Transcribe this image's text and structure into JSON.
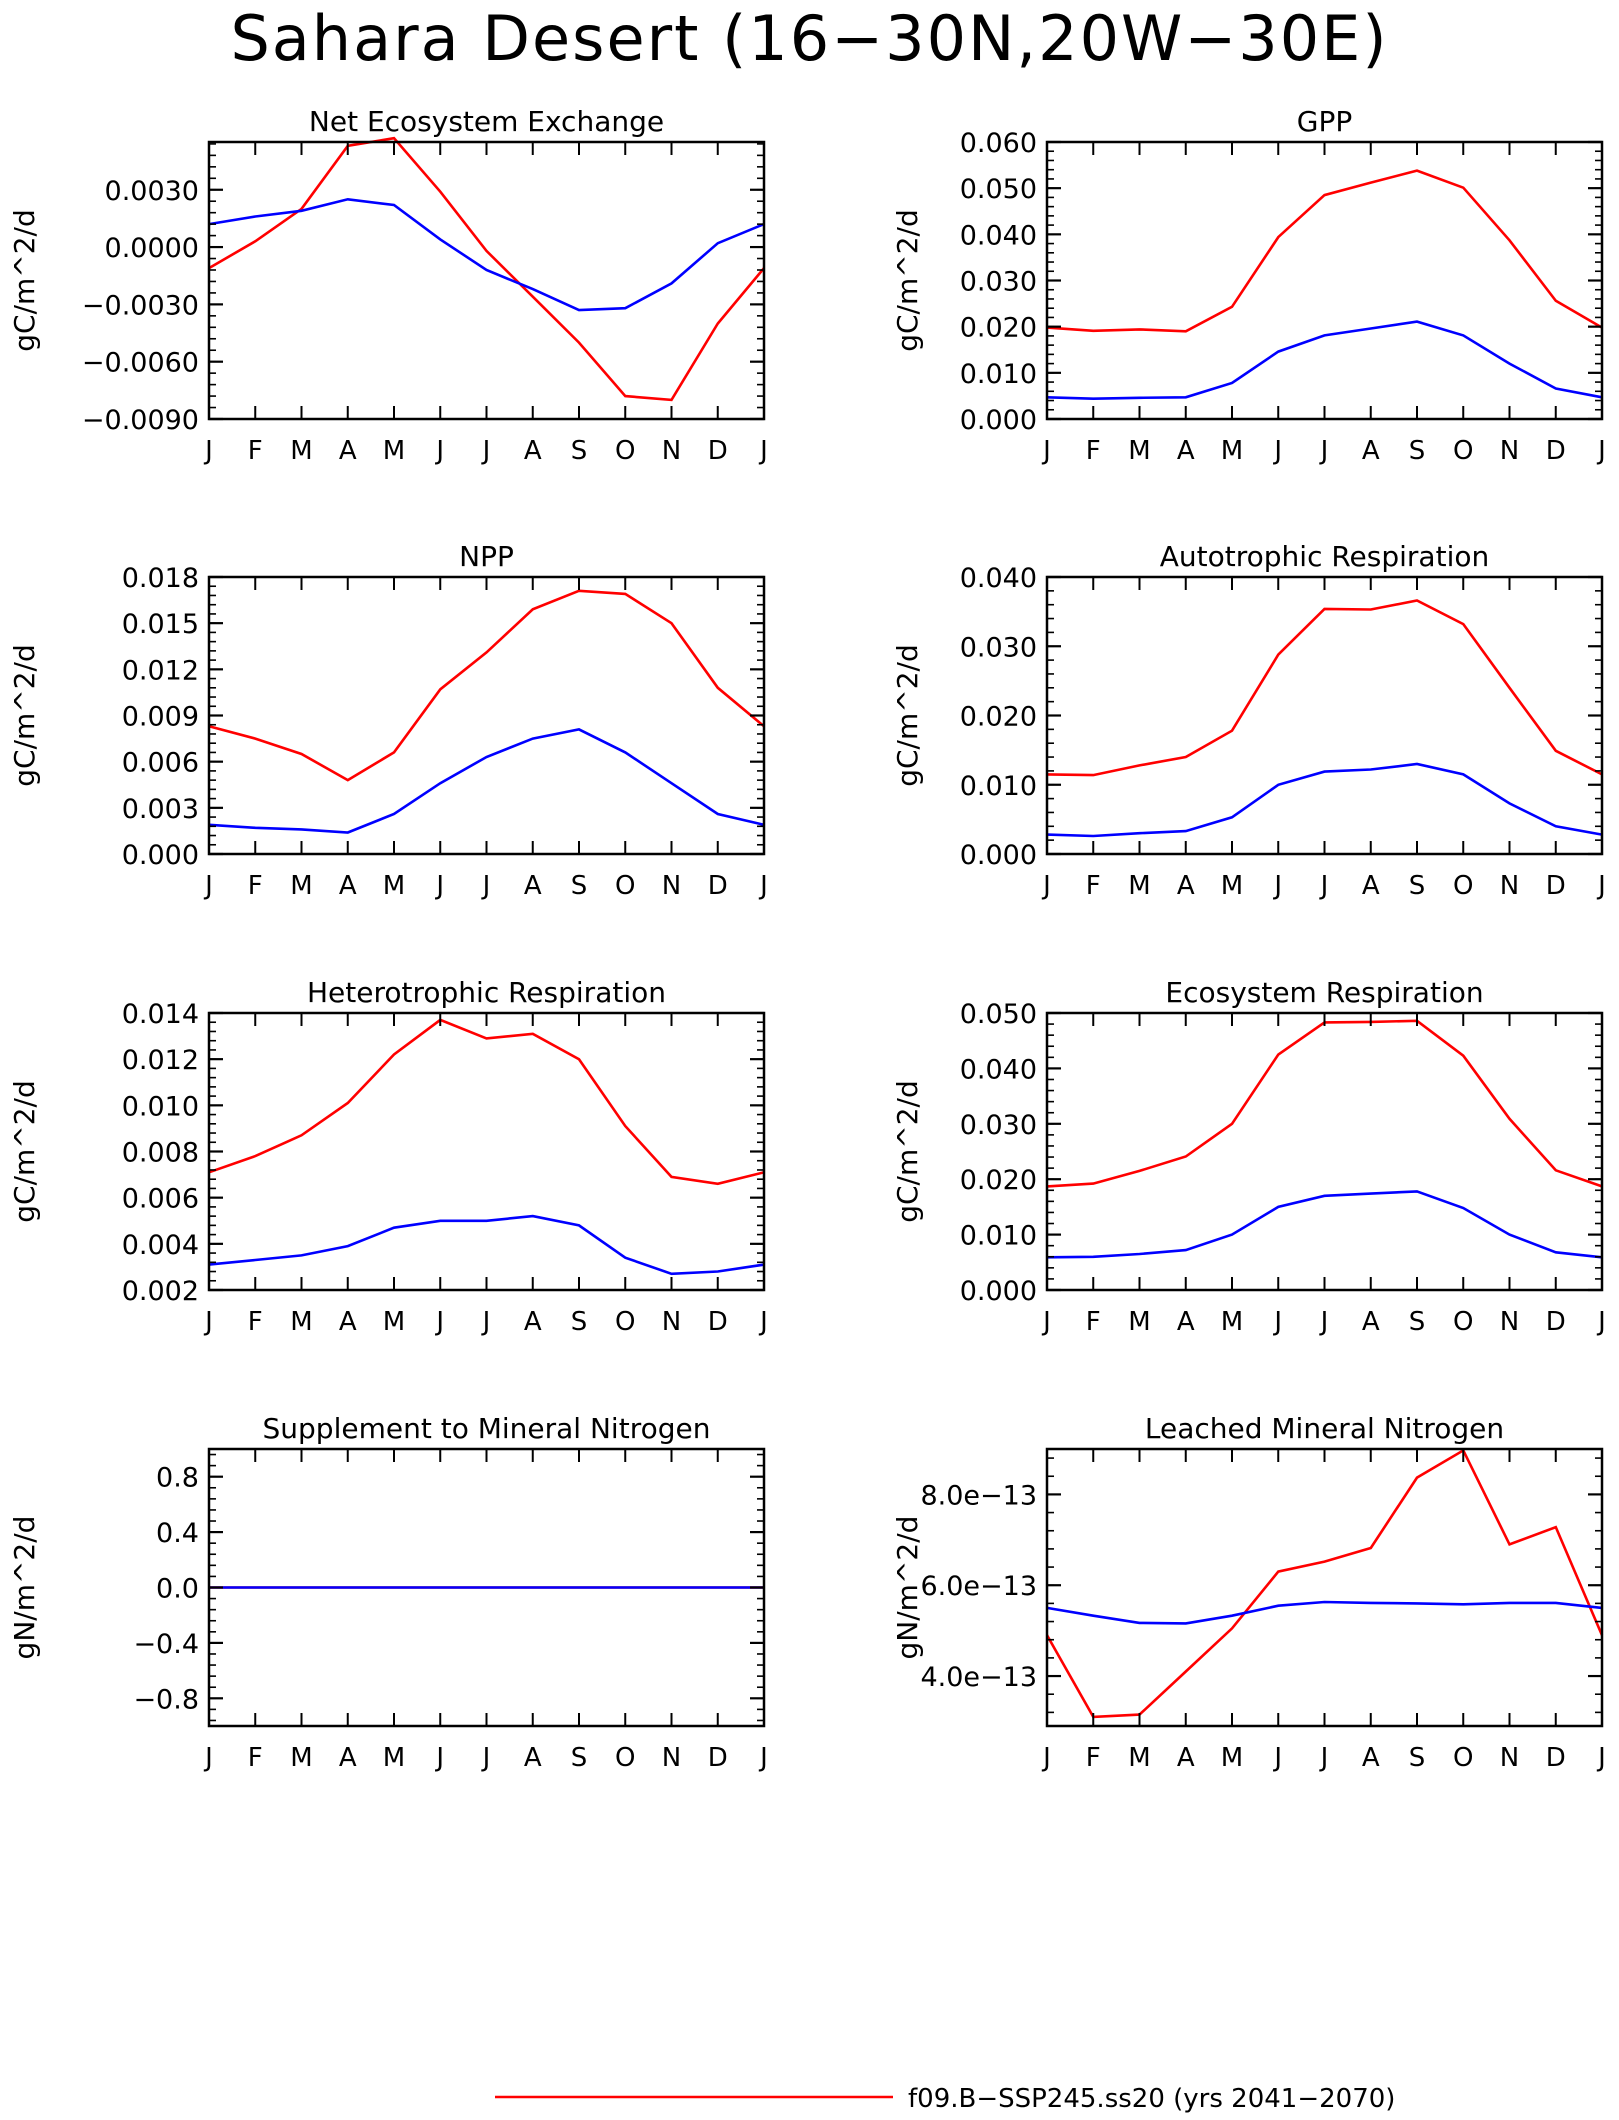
{
  "page": {
    "title": "Sahara Desert (16−30N,20W−30E)"
  },
  "legend": {
    "entries": [
      {
        "label": "f09.B−SSP245.ss20 (yrs 2041−2070)",
        "color": "#ff0000"
      }
    ]
  },
  "chart_data": [
    {
      "type": "line",
      "title": "Net Ecosystem Exchange",
      "ylabel": "gC/m^2/d",
      "x": [
        "J",
        "F",
        "M",
        "A",
        "M",
        "J",
        "J",
        "A",
        "S",
        "O",
        "N",
        "D",
        "J"
      ],
      "ylim": [
        -0.009,
        0.0055
      ],
      "yticks": [
        -0.009,
        -0.006,
        -0.003,
        0.0,
        0.003
      ],
      "ytick_labels": [
        "−0.0090",
        "−0.0060",
        "−0.0030",
        "0.0000",
        "0.0030"
      ],
      "series": [
        {
          "color": "#ff0000",
          "values": [
            -0.0011,
            0.0003,
            0.002,
            0.0053,
            0.0057,
            0.0029,
            -0.0002,
            -0.0026,
            -0.005,
            -0.0078,
            -0.008,
            -0.004,
            -0.0011
          ]
        },
        {
          "color": "#0000ff",
          "values": [
            0.0012,
            0.0016,
            0.0019,
            0.0025,
            0.0022,
            0.0004,
            -0.0012,
            -0.0022,
            -0.0033,
            -0.0032,
            -0.0019,
            0.0002,
            0.0012
          ]
        }
      ]
    },
    {
      "type": "line",
      "title": "GPP",
      "ylabel": "gC/m^2/d",
      "x": [
        "J",
        "F",
        "M",
        "A",
        "M",
        "J",
        "J",
        "A",
        "S",
        "O",
        "N",
        "D",
        "J"
      ],
      "ylim": [
        0.0,
        0.06
      ],
      "yticks": [
        0.0,
        0.01,
        0.02,
        0.03,
        0.04,
        0.05,
        0.06
      ],
      "ytick_labels": [
        "0.000",
        "0.010",
        "0.020",
        "0.030",
        "0.040",
        "0.050",
        "0.060"
      ],
      "series": [
        {
          "color": "#ff0000",
          "values": [
            0.0198,
            0.0191,
            0.0194,
            0.019,
            0.0243,
            0.0394,
            0.0485,
            0.0512,
            0.0538,
            0.0501,
            0.0387,
            0.0256,
            0.0198
          ]
        },
        {
          "color": "#0000ff",
          "values": [
            0.0047,
            0.0044,
            0.0046,
            0.0047,
            0.0078,
            0.0146,
            0.0181,
            0.0196,
            0.0211,
            0.0181,
            0.012,
            0.0066,
            0.0047
          ]
        }
      ]
    },
    {
      "type": "line",
      "title": "NPP",
      "ylabel": "gC/m^2/d",
      "x": [
        "J",
        "F",
        "M",
        "A",
        "M",
        "J",
        "J",
        "A",
        "S",
        "O",
        "N",
        "D",
        "J"
      ],
      "ylim": [
        0.0,
        0.018
      ],
      "yticks": [
        0.0,
        0.003,
        0.006,
        0.009,
        0.012,
        0.015,
        0.018
      ],
      "ytick_labels": [
        "0.000",
        "0.003",
        "0.006",
        "0.009",
        "0.012",
        "0.015",
        "0.018"
      ],
      "series": [
        {
          "color": "#ff0000",
          "values": [
            0.0083,
            0.0075,
            0.0065,
            0.0048,
            0.0066,
            0.0107,
            0.0131,
            0.0159,
            0.0171,
            0.0169,
            0.015,
            0.0108,
            0.0083
          ]
        },
        {
          "color": "#0000ff",
          "values": [
            0.0019,
            0.0017,
            0.0016,
            0.0014,
            0.0026,
            0.0046,
            0.0063,
            0.0075,
            0.0081,
            0.0066,
            0.0046,
            0.0026,
            0.0019
          ]
        }
      ]
    },
    {
      "type": "line",
      "title": "Autotrophic Respiration",
      "ylabel": "gC/m^2/d",
      "x": [
        "J",
        "F",
        "M",
        "A",
        "M",
        "J",
        "J",
        "A",
        "S",
        "O",
        "N",
        "D",
        "J"
      ],
      "ylim": [
        0.0,
        0.04
      ],
      "yticks": [
        0.0,
        0.01,
        0.02,
        0.03,
        0.04
      ],
      "ytick_labels": [
        "0.000",
        "0.010",
        "0.020",
        "0.030",
        "0.040"
      ],
      "series": [
        {
          "color": "#ff0000",
          "values": [
            0.0115,
            0.0114,
            0.0128,
            0.014,
            0.0178,
            0.0288,
            0.0354,
            0.0353,
            0.0366,
            0.0332,
            0.024,
            0.0149,
            0.0115
          ]
        },
        {
          "color": "#0000ff",
          "values": [
            0.0028,
            0.0026,
            0.003,
            0.0033,
            0.0053,
            0.01,
            0.0119,
            0.0122,
            0.013,
            0.0115,
            0.0073,
            0.004,
            0.0028
          ]
        }
      ]
    },
    {
      "type": "line",
      "title": "Heterotrophic Respiration",
      "ylabel": "gC/m^2/d",
      "x": [
        "J",
        "F",
        "M",
        "A",
        "M",
        "J",
        "J",
        "A",
        "S",
        "O",
        "N",
        "D",
        "J"
      ],
      "ylim": [
        0.002,
        0.014
      ],
      "yticks": [
        0.002,
        0.004,
        0.006,
        0.008,
        0.01,
        0.012,
        0.014
      ],
      "ytick_labels": [
        "0.002",
        "0.004",
        "0.006",
        "0.008",
        "0.010",
        "0.012",
        "0.014"
      ],
      "series": [
        {
          "color": "#ff0000",
          "values": [
            0.0071,
            0.0078,
            0.0087,
            0.0101,
            0.0122,
            0.0137,
            0.0129,
            0.0131,
            0.012,
            0.0091,
            0.0069,
            0.0066,
            0.0071
          ]
        },
        {
          "color": "#0000ff",
          "values": [
            0.0031,
            0.0033,
            0.0035,
            0.0039,
            0.0047,
            0.005,
            0.005,
            0.0052,
            0.0048,
            0.0034,
            0.0027,
            0.0028,
            0.0031
          ]
        }
      ]
    },
    {
      "type": "line",
      "title": "Ecosystem Respiration",
      "ylabel": "gC/m^2/d",
      "x": [
        "J",
        "F",
        "M",
        "A",
        "M",
        "J",
        "J",
        "A",
        "S",
        "O",
        "N",
        "D",
        "J"
      ],
      "ylim": [
        0.0,
        0.05
      ],
      "yticks": [
        0.0,
        0.01,
        0.02,
        0.03,
        0.04,
        0.05
      ],
      "ytick_labels": [
        "0.000",
        "0.010",
        "0.020",
        "0.030",
        "0.040",
        "0.050"
      ],
      "series": [
        {
          "color": "#ff0000",
          "values": [
            0.0187,
            0.0192,
            0.0215,
            0.0241,
            0.03,
            0.0425,
            0.0483,
            0.0484,
            0.0486,
            0.0423,
            0.0309,
            0.0216,
            0.0187
          ]
        },
        {
          "color": "#0000ff",
          "values": [
            0.0059,
            0.006,
            0.0065,
            0.0072,
            0.01,
            0.015,
            0.017,
            0.0174,
            0.0178,
            0.0148,
            0.01,
            0.0068,
            0.0059
          ]
        }
      ]
    },
    {
      "type": "line",
      "title": "Supplement to Mineral Nitrogen",
      "ylabel": "gN/m^2/d",
      "x": [
        "J",
        "F",
        "M",
        "A",
        "M",
        "J",
        "J",
        "A",
        "S",
        "O",
        "N",
        "D",
        "J"
      ],
      "ylim": [
        -1.0,
        1.0
      ],
      "yticks": [
        -0.8,
        -0.4,
        0.0,
        0.4,
        0.8
      ],
      "ytick_labels": [
        "−0.8",
        "−0.4",
        "0.0",
        "0.4",
        "0.8"
      ],
      "series": [
        {
          "color": "#ff0000",
          "values": [
            0,
            0,
            0,
            0,
            0,
            0,
            0,
            0,
            0,
            0,
            0,
            0,
            0
          ]
        },
        {
          "color": "#0000ff",
          "values": [
            0,
            0,
            0,
            0,
            0,
            0,
            0,
            0,
            0,
            0,
            0,
            0,
            0
          ]
        }
      ]
    },
    {
      "type": "line",
      "title": "Leached Mineral Nitrogen",
      "ylabel": "gN/m^2/d",
      "x": [
        "J",
        "F",
        "M",
        "A",
        "M",
        "J",
        "J",
        "A",
        "S",
        "O",
        "N",
        "D",
        "J"
      ],
      "ylim": [
        2.9e-13,
        9e-13
      ],
      "yticks": [
        4e-13,
        6e-13,
        8e-13
      ],
      "ytick_labels": [
        "4.0e−13",
        "6.0e−13",
        "8.0e−13"
      ],
      "series": [
        {
          "color": "#ff0000",
          "values": [
            4.9e-13,
            3.1e-13,
            3.15e-13,
            4.1e-13,
            5.05e-13,
            6.3e-13,
            6.52e-13,
            6.82e-13,
            8.37e-13,
            8.97e-13,
            6.9e-13,
            7.28e-13,
            4.9e-13
          ]
        },
        {
          "color": "#0000ff",
          "values": [
            5.5e-13,
            5.33e-13,
            5.17e-13,
            5.16e-13,
            5.33e-13,
            5.55e-13,
            5.63e-13,
            5.61e-13,
            5.6e-13,
            5.58e-13,
            5.61e-13,
            5.61e-13,
            5.5e-13
          ]
        }
      ]
    }
  ]
}
